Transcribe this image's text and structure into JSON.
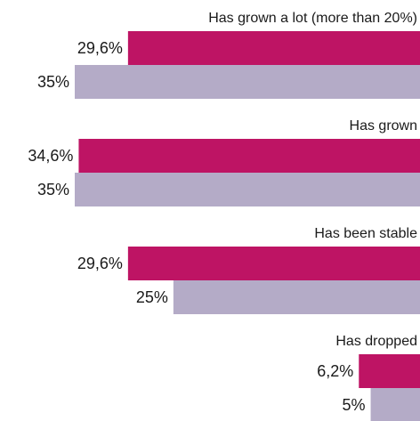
{
  "chart_data": {
    "type": "bar",
    "orientation": "horizontal",
    "categories": [
      "Has grown a lot (more than 20%)",
      "Has grown",
      "Has been stable",
      "Has dropped"
    ],
    "series": [
      {
        "color": "#be1464",
        "values": [
          29.6,
          34.6,
          29.6,
          6.2
        ],
        "value_labels": [
          "29,6%",
          "34,6%",
          "29,6%",
          "6,2%"
        ]
      },
      {
        "color": "#b4abc7",
        "values": [
          35,
          35,
          25,
          5
        ],
        "value_labels": [
          "35%",
          "35%",
          "25%",
          "5%"
        ]
      }
    ]
  }
}
